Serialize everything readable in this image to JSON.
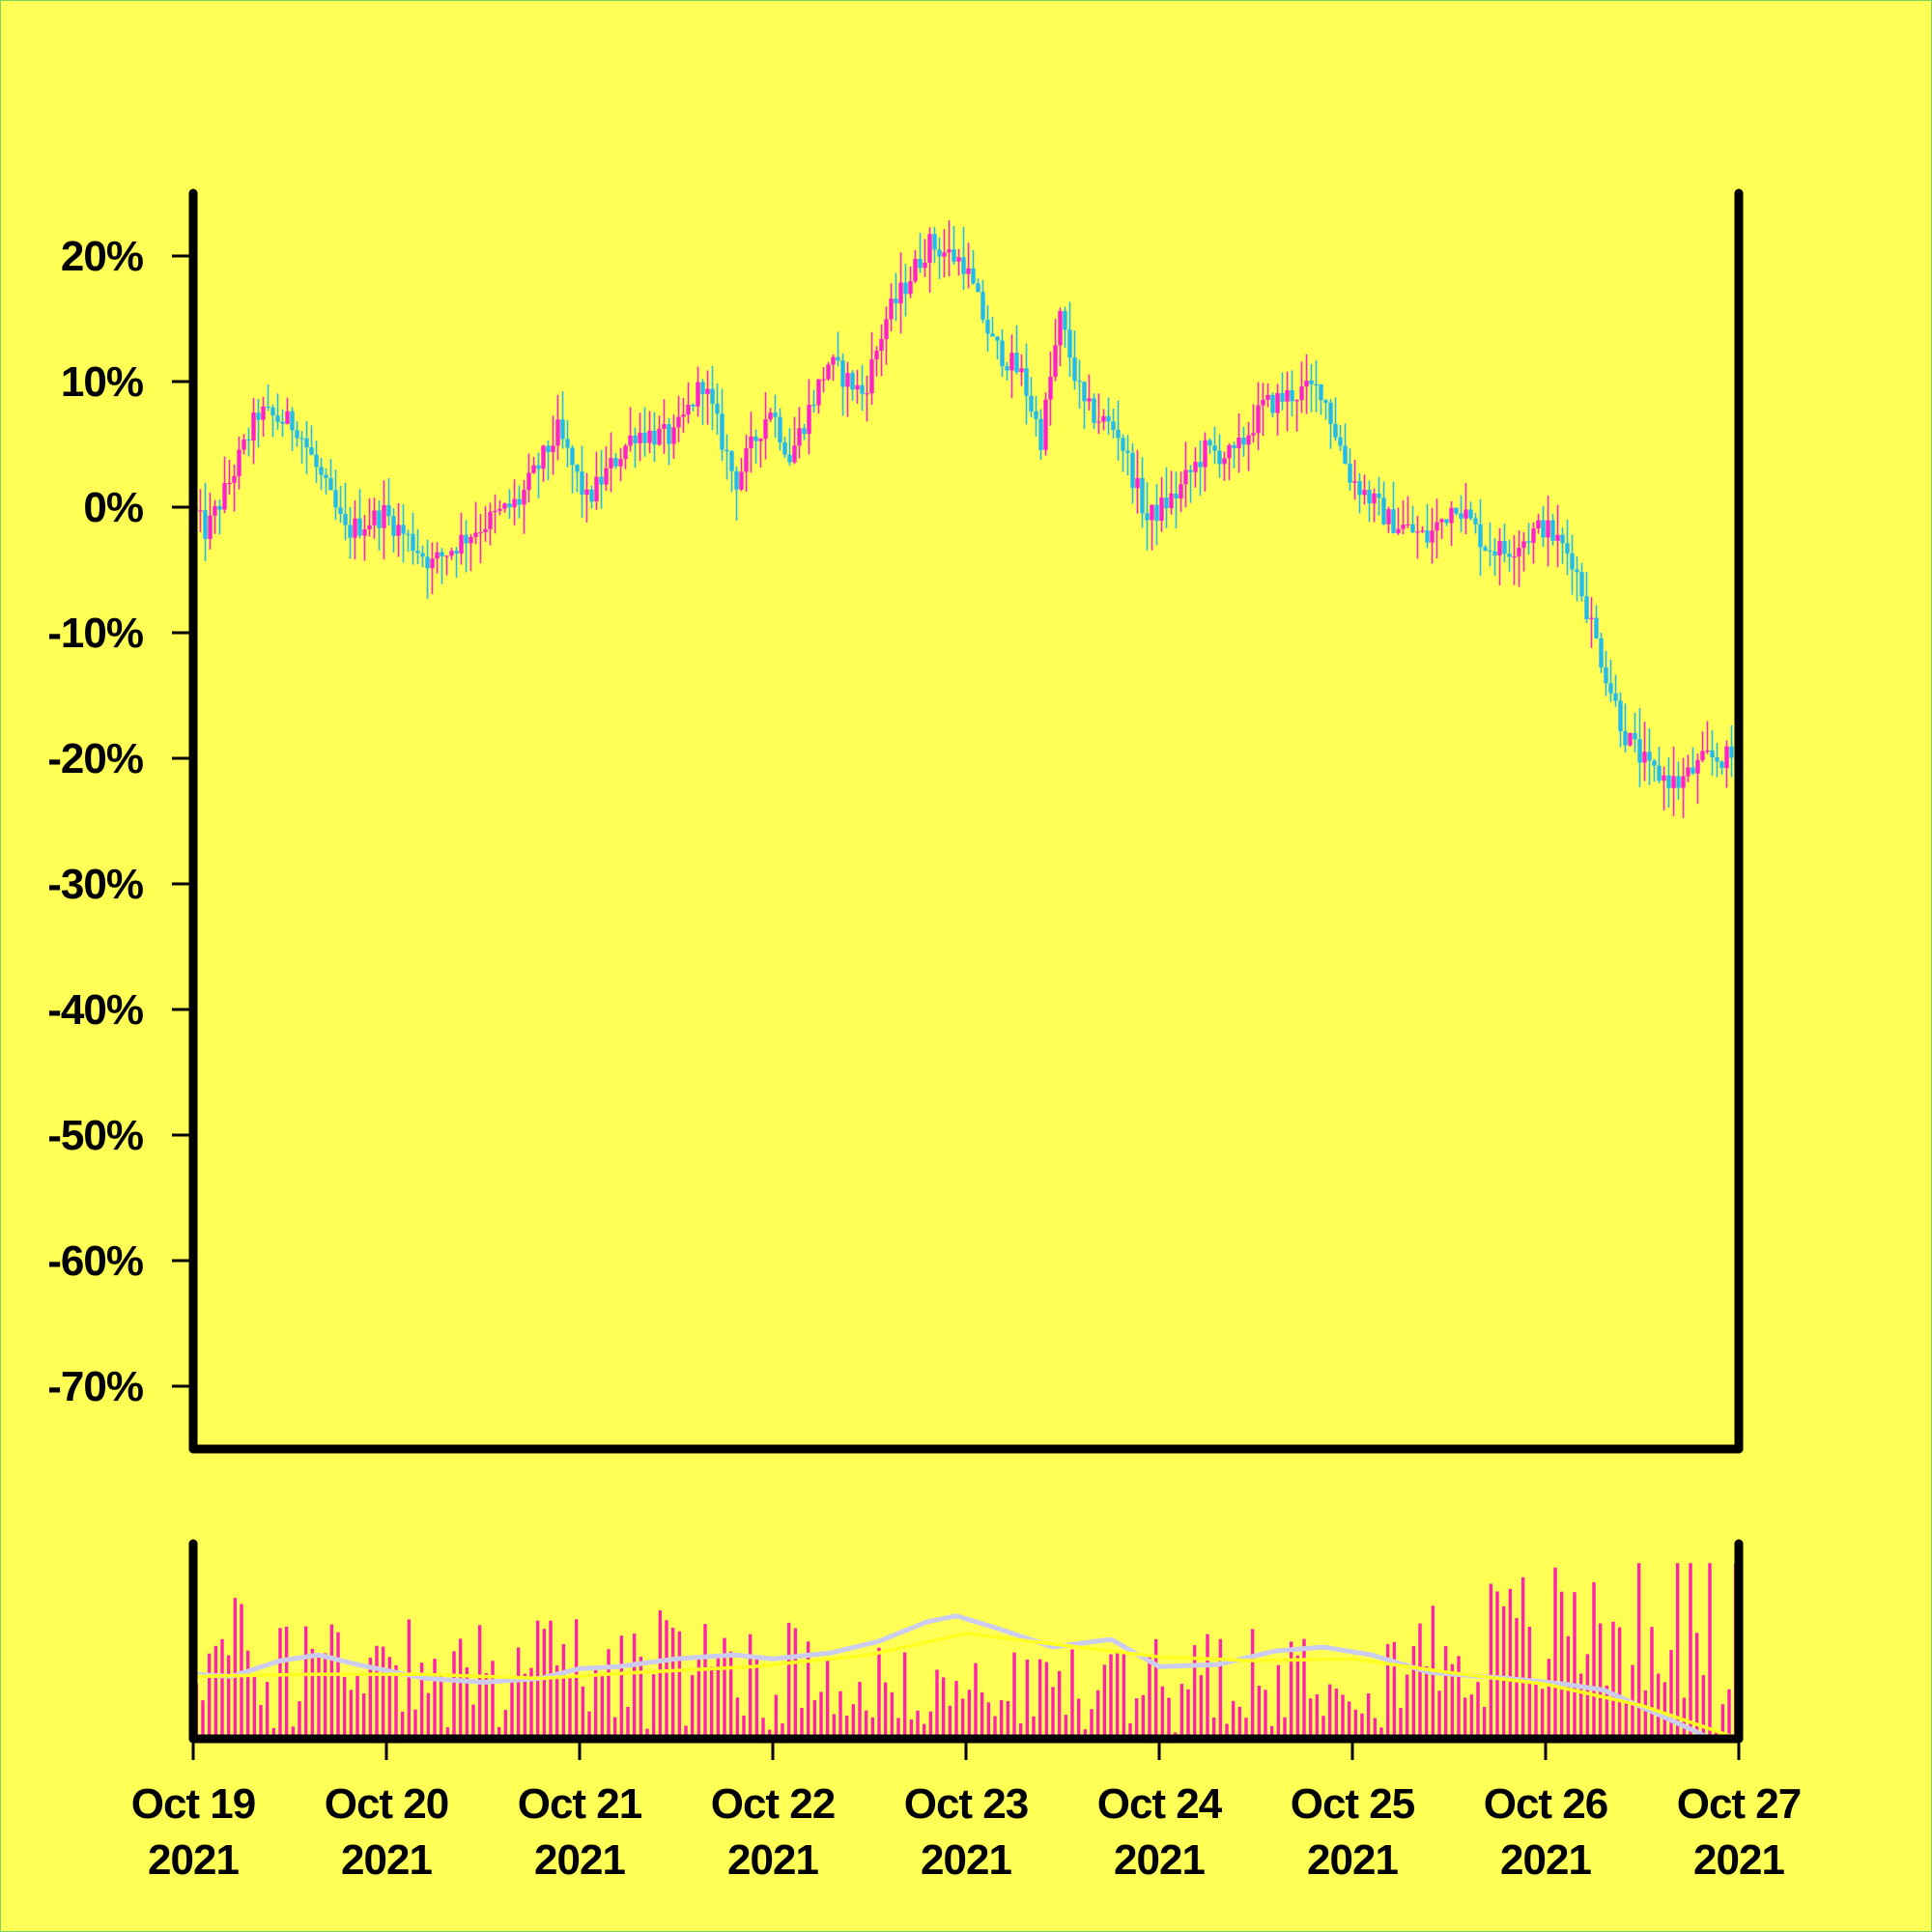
{
  "chart_data": [
    {
      "type": "candlestick",
      "title": "",
      "xlabel": "",
      "ylabel": "",
      "y_unit": "%",
      "ylim": [
        -75,
        25
      ],
      "y_ticks": [
        20,
        10,
        0,
        -10,
        -20,
        -30,
        -40,
        -50,
        -60,
        -70
      ],
      "y_tick_labels": [
        "20%",
        "10%",
        "0%",
        "-10%",
        "-20%",
        "-30%",
        "-40%",
        "-50%",
        "-60%",
        "-70%"
      ],
      "xlim": [
        "2021-10-19",
        "2021-10-27"
      ],
      "x_ticks": [
        "Oct 19\n2021",
        "Oct 20\n2021",
        "Oct 21\n2021",
        "Oct 22\n2021",
        "Oct 23\n2021",
        "Oct 24\n2021",
        "Oct 25\n2021",
        "Oct 26\n2021",
        "Oct 27\n2021"
      ],
      "x_tick_lines": [
        [
          "Oct 19",
          "2021"
        ],
        [
          "Oct 20",
          "2021"
        ],
        [
          "Oct 21",
          "2021"
        ],
        [
          "Oct 22",
          "2021"
        ],
        [
          "Oct 23",
          "2021"
        ],
        [
          "Oct 24",
          "2021"
        ],
        [
          "Oct 25",
          "2021"
        ],
        [
          "Oct 26",
          "2021"
        ],
        [
          "Oct 27",
          "2021"
        ]
      ],
      "grid": false,
      "up_color": "#ff22cc",
      "down_color": "#22bbee",
      "background": "#ffff55",
      "close_path": [
        [
          0.0,
          0
        ],
        [
          0.08,
          -2
        ],
        [
          0.2,
          2
        ],
        [
          0.35,
          7.5
        ],
        [
          0.55,
          6.5
        ],
        [
          0.8,
          -2
        ],
        [
          1.0,
          -0.5
        ],
        [
          1.25,
          -4.5
        ],
        [
          1.45,
          -2
        ],
        [
          1.7,
          0.5
        ],
        [
          1.9,
          6
        ],
        [
          2.05,
          0.5
        ],
        [
          2.3,
          6
        ],
        [
          2.5,
          5.5
        ],
        [
          2.65,
          10
        ],
        [
          2.82,
          2
        ],
        [
          3.0,
          8
        ],
        [
          3.1,
          4
        ],
        [
          3.3,
          11.5
        ],
        [
          3.48,
          9
        ],
        [
          3.6,
          15
        ],
        [
          3.82,
          21
        ],
        [
          4.0,
          19.5
        ],
        [
          4.15,
          13
        ],
        [
          4.3,
          10.5
        ],
        [
          4.4,
          5.5
        ],
        [
          4.5,
          15
        ],
        [
          4.62,
          8
        ],
        [
          4.8,
          6
        ],
        [
          4.95,
          -1
        ],
        [
          5.1,
          1
        ],
        [
          5.25,
          4.5
        ],
        [
          5.4,
          4
        ],
        [
          5.55,
          8
        ],
        [
          5.7,
          9
        ],
        [
          5.85,
          9.5
        ],
        [
          6.0,
          2.5
        ],
        [
          6.2,
          -1
        ],
        [
          6.4,
          -2.5
        ],
        [
          6.55,
          0.5
        ],
        [
          6.7,
          -3
        ],
        [
          6.8,
          -3.5
        ],
        [
          7.0,
          -1.5
        ],
        [
          7.15,
          -4
        ],
        [
          7.3,
          -12
        ],
        [
          7.42,
          -18
        ],
        [
          7.55,
          -21
        ],
        [
          7.7,
          -22
        ],
        [
          7.85,
          -20
        ],
        [
          8.0,
          -20
        ]
      ],
      "volatility": 2.5
    },
    {
      "type": "volume_bar",
      "title": "",
      "xlabel": "",
      "ylabel": "",
      "xlim": [
        "2021-10-19",
        "2021-10-27"
      ],
      "bar_color": "#ff22aa",
      "volume_level": [
        [
          0.0,
          0.45
        ],
        [
          1.0,
          0.45
        ],
        [
          2.0,
          0.4
        ],
        [
          3.0,
          0.42
        ],
        [
          3.8,
          0.25
        ],
        [
          4.5,
          0.28
        ],
        [
          5.2,
          0.42
        ],
        [
          6.0,
          0.4
        ],
        [
          6.6,
          0.5
        ],
        [
          7.2,
          0.58
        ],
        [
          8.0,
          0.68
        ]
      ],
      "moving_averages": [
        {
          "color": "#ccccee",
          "values": [
            [
              0.0,
              0.33
            ],
            [
              0.2,
              0.32
            ],
            [
              0.45,
              0.4
            ],
            [
              0.65,
              0.43
            ],
            [
              0.85,
              0.38
            ],
            [
              1.2,
              0.31
            ],
            [
              1.5,
              0.29
            ],
            [
              1.8,
              0.31
            ],
            [
              2.0,
              0.36
            ],
            [
              2.2,
              0.37
            ],
            [
              2.5,
              0.41
            ],
            [
              2.8,
              0.43
            ],
            [
              3.0,
              0.41
            ],
            [
              3.3,
              0.44
            ],
            [
              3.55,
              0.5
            ],
            [
              3.8,
              0.6
            ],
            [
              3.95,
              0.63
            ],
            [
              4.15,
              0.57
            ],
            [
              4.45,
              0.47
            ],
            [
              4.75,
              0.51
            ],
            [
              5.0,
              0.37
            ],
            [
              5.3,
              0.38
            ],
            [
              5.6,
              0.45
            ],
            [
              5.85,
              0.47
            ],
            [
              6.1,
              0.43
            ],
            [
              6.4,
              0.34
            ],
            [
              6.8,
              0.31
            ],
            [
              7.1,
              0.28
            ],
            [
              7.3,
              0.25
            ],
            [
              7.55,
              0.14
            ],
            [
              7.75,
              0.05
            ],
            [
              7.85,
              0.0
            ]
          ]
        },
        {
          "color": "#ffff22",
          "values": [
            [
              0.0,
              0.32
            ],
            [
              0.6,
              0.33
            ],
            [
              1.2,
              0.33
            ],
            [
              1.8,
              0.31
            ],
            [
              2.3,
              0.34
            ],
            [
              2.9,
              0.37
            ],
            [
              3.5,
              0.43
            ],
            [
              4.0,
              0.54
            ],
            [
              4.5,
              0.48
            ],
            [
              5.0,
              0.42
            ],
            [
              5.5,
              0.4
            ],
            [
              6.0,
              0.41
            ],
            [
              6.5,
              0.34
            ],
            [
              7.0,
              0.28
            ],
            [
              7.5,
              0.17
            ],
            [
              8.0,
              0.0
            ]
          ]
        }
      ]
    }
  ]
}
